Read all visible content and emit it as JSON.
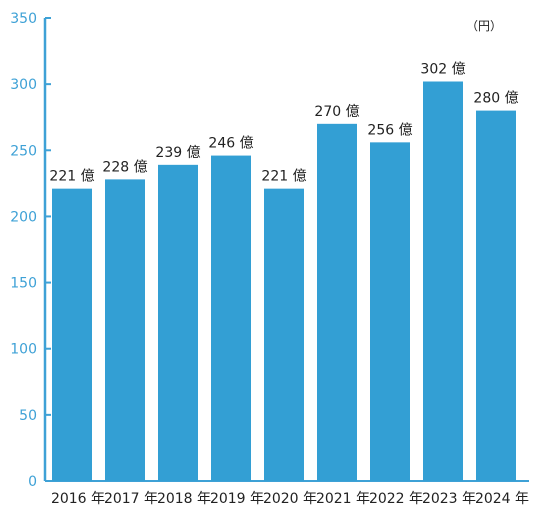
{
  "chart_data": {
    "type": "bar",
    "categories": [
      "2016 年",
      "2017 年",
      "2018 年",
      "2019 年",
      "2020 年",
      "2021 年",
      "2022 年",
      "2023 年",
      "2024 年"
    ],
    "values": [
      221,
      228,
      239,
      246,
      221,
      270,
      256,
      302,
      280
    ],
    "data_labels": [
      "221 億",
      "228 億",
      "239 億",
      "246 億",
      "221 億",
      "270 億",
      "256 億",
      "302 億",
      "280 億"
    ],
    "yticks": [
      0,
      50,
      100,
      150,
      200,
      250,
      300,
      350
    ],
    "ylim": [
      0,
      350
    ],
    "unit_label": "（円）",
    "title": "",
    "xlabel": "",
    "ylabel": "",
    "grid": false,
    "colors": {
      "bar": "#339fd4",
      "axis": "#3ea1d6",
      "text": "#222222"
    }
  }
}
